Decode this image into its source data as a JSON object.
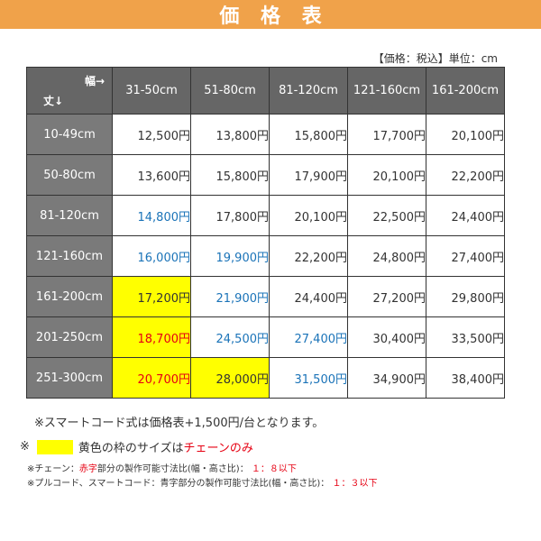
{
  "title": "価 格 表",
  "unit_note": "【価格：税込】単位：cm",
  "corner": {
    "width_label": "幅→",
    "height_label": "丈↓"
  },
  "columns": [
    "31-50cm",
    "51-80cm",
    "81-120cm",
    "121-160cm",
    "161-200cm"
  ],
  "rows": [
    {
      "label": "10-49cm",
      "cells": [
        {
          "v": "12,500円",
          "c": "plain"
        },
        {
          "v": "13,800円",
          "c": "plain"
        },
        {
          "v": "15,800円",
          "c": "plain"
        },
        {
          "v": "17,700円",
          "c": "plain"
        },
        {
          "v": "20,100円",
          "c": "plain"
        }
      ]
    },
    {
      "label": "50-80cm",
      "cells": [
        {
          "v": "13,600円",
          "c": "plain"
        },
        {
          "v": "15,800円",
          "c": "plain"
        },
        {
          "v": "17,900円",
          "c": "plain"
        },
        {
          "v": "20,100円",
          "c": "plain"
        },
        {
          "v": "22,200円",
          "c": "plain"
        }
      ]
    },
    {
      "label": "81-120cm",
      "cells": [
        {
          "v": "14,800円",
          "c": "blue"
        },
        {
          "v": "17,800円",
          "c": "plain"
        },
        {
          "v": "20,100円",
          "c": "plain"
        },
        {
          "v": "22,500円",
          "c": "plain"
        },
        {
          "v": "24,400円",
          "c": "plain"
        }
      ]
    },
    {
      "label": "121-160cm",
      "cells": [
        {
          "v": "16,000円",
          "c": "blue"
        },
        {
          "v": "19,900円",
          "c": "blue"
        },
        {
          "v": "22,200円",
          "c": "plain"
        },
        {
          "v": "24,800円",
          "c": "plain"
        },
        {
          "v": "27,400円",
          "c": "plain"
        }
      ]
    },
    {
      "label": "161-200cm",
      "cells": [
        {
          "v": "17,200円",
          "c": "plain",
          "y": true
        },
        {
          "v": "21,900円",
          "c": "blue"
        },
        {
          "v": "24,400円",
          "c": "plain"
        },
        {
          "v": "27,200円",
          "c": "plain"
        },
        {
          "v": "29,800円",
          "c": "plain"
        }
      ]
    },
    {
      "label": "201-250cm",
      "cells": [
        {
          "v": "18,700円",
          "c": "red",
          "y": true
        },
        {
          "v": "24,500円",
          "c": "blue"
        },
        {
          "v": "27,400円",
          "c": "blue"
        },
        {
          "v": "30,400円",
          "c": "plain"
        },
        {
          "v": "33,500円",
          "c": "plain"
        }
      ]
    },
    {
      "label": "251-300cm",
      "cells": [
        {
          "v": "20,700円",
          "c": "red",
          "y": true
        },
        {
          "v": "28,000円",
          "c": "plain",
          "y": true
        },
        {
          "v": "31,500円",
          "c": "blue"
        },
        {
          "v": "34,900円",
          "c": "plain"
        },
        {
          "v": "38,400円",
          "c": "plain"
        }
      ]
    }
  ],
  "notes": {
    "smartcord": "※スマートコード式は価格表+1,500円/台となります。",
    "mark": "※",
    "yellow_prefix": "黄色の枠のサイズは",
    "yellow_chain": "チェーンのみ",
    "chain_a": "※チェーン：",
    "chain_b": "赤字",
    "chain_c": "部分の製作可能寸法比(幅・高さ比)：",
    "chain_d": "１：８以下",
    "pull_a": "※プルコード、スマートコード：青字部分の製作可能寸法比(幅・高さ比)：",
    "pull_b": "１：３以下"
  },
  "colors": {
    "banner": "#f0a24a",
    "header": "#666666",
    "yellow": "#ffff00",
    "red": "#e60012",
    "blue": "#1a73b8"
  }
}
